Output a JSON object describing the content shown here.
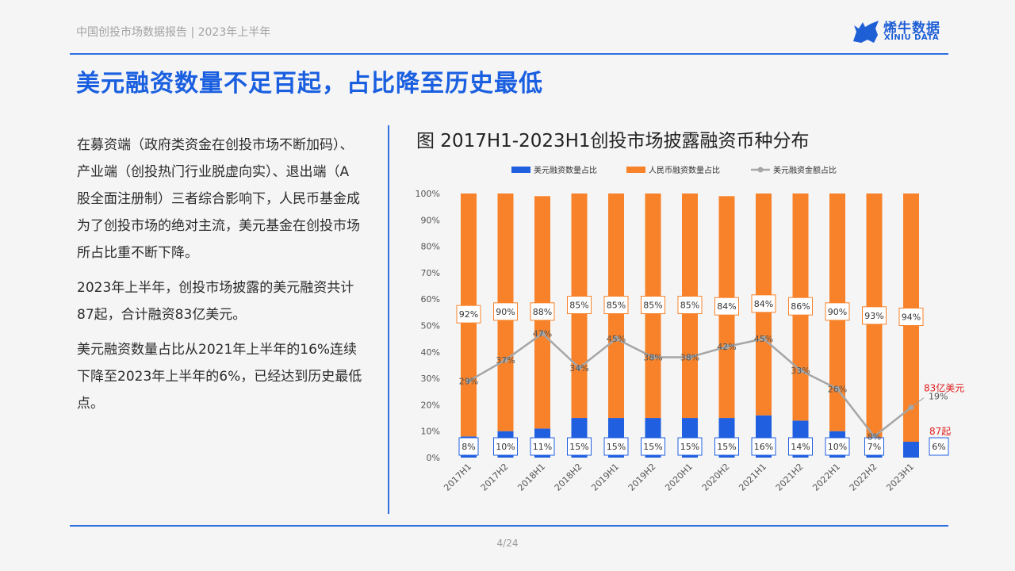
{
  "header": {
    "report_title": "中国创投市场数据报告 | 2023年上半年",
    "logo_cn": "烯牛数据",
    "logo_en": "XINIU DATA"
  },
  "page_title": "美元融资数量不足百起，占比降至历史最低",
  "left_text": [
    "在募资端（政府类资金在创投市场不断加码）、产业端（创投热门行业脱虚向实）、退出端（A股全面注册制）三者综合影响下，人民币基金成为了创投市场的绝对主流，美元基金在创投市场所占比重不断下降。",
    "2023年上半年，创投市场披露的美元融资共计87起，合计融资83亿美元。",
    "美元融资数量占比从2021年上半年的16%连续下降至2023年上半年的6%，已经达到历史最低点。"
  ],
  "chart_title": "图 2017H1-2023H1创投市场披露融资币种分布",
  "page_number": "4/24",
  "colors": {
    "usd_count": "#1f5fe0",
    "rmb_count": "#f7822a",
    "usd_amount": "#a6a6a6",
    "accent": "#1a5fe0",
    "highlight": "#e02020"
  },
  "chart_data": {
    "type": "bar",
    "stacked": true,
    "categories": [
      "2017H1",
      "2017H2",
      "2018H1",
      "2018H2",
      "2019H1",
      "2019H2",
      "2020H1",
      "2020H2",
      "2021H1",
      "2021H2",
      "2022H1",
      "2022H2",
      "2023H1"
    ],
    "series": [
      {
        "name": "美元融资数量占比",
        "type": "bar",
        "values": [
          8,
          10,
          11,
          15,
          15,
          15,
          15,
          15,
          16,
          14,
          10,
          7,
          6
        ],
        "labels": [
          "8%",
          "10%",
          "11%",
          "15%",
          "15%",
          "15%",
          "15%",
          "15%",
          "16%",
          "14%",
          "10%",
          "7%",
          "6%"
        ]
      },
      {
        "name": "人民币融资数量占比",
        "type": "bar",
        "values": [
          92,
          90,
          88,
          85,
          85,
          85,
          85,
          84,
          84,
          86,
          90,
          93,
          94
        ],
        "labels": [
          "92%",
          "90%",
          "88%",
          "85%",
          "85%",
          "85%",
          "85%",
          "84%",
          "84%",
          "86%",
          "90%",
          "93%",
          "94%"
        ]
      },
      {
        "name": "美元融资金额占比",
        "type": "line",
        "values": [
          29,
          37,
          47,
          34,
          45,
          38,
          38,
          42,
          45,
          33,
          26,
          8,
          19
        ],
        "labels": [
          "29%",
          "37%",
          "47%",
          "34%",
          "45%",
          "38%",
          "38%",
          "42%",
          "45%",
          "33%",
          "26%",
          "8%",
          "19%"
        ]
      }
    ],
    "y_ticks": [
      "0%",
      "10%",
      "20%",
      "30%",
      "40%",
      "50%",
      "60%",
      "70%",
      "80%",
      "90%",
      "100%"
    ],
    "ylim": [
      0,
      100
    ],
    "legend_position": "top",
    "annotations": [
      {
        "text": "83亿美元",
        "target": "美元融资金额占比",
        "category": "2023H1"
      },
      {
        "text": "87起",
        "target": "美元融资数量占比",
        "category": "2023H1"
      }
    ]
  }
}
